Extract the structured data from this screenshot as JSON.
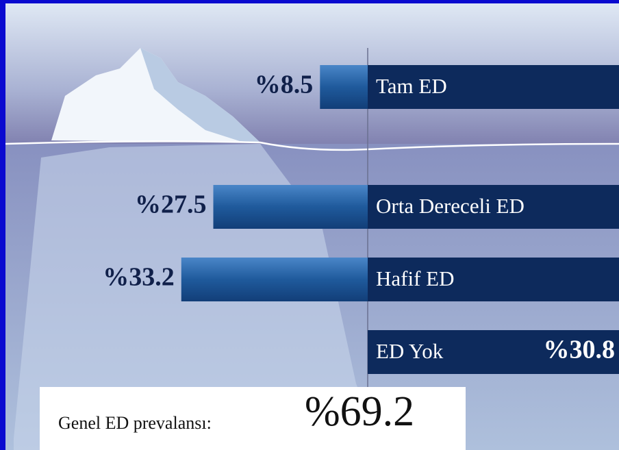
{
  "chart_data": {
    "type": "bar",
    "categories": [
      "Tam ED",
      "Orta Dereceli ED",
      "Hafif ED",
      "ED Yok"
    ],
    "values": [
      8.5,
      27.5,
      33.2,
      30.8
    ],
    "value_labels": [
      "%8.5",
      "%27.5",
      "%33.2",
      "%30.8"
    ],
    "color": "#1f5a9c",
    "summary": {
      "label": "Genel ED prevalansı:",
      "value": 69.2,
      "value_label": "%69.2"
    }
  }
}
